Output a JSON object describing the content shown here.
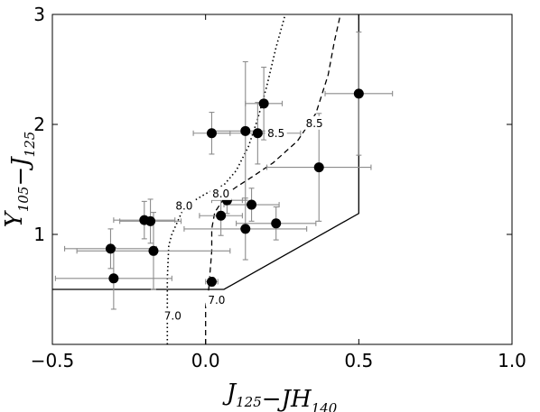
{
  "chart_data": {
    "type": "scatter",
    "xlabel": {
      "parts": [
        [
          "J",
          "125"
        ],
        [
          "−JH",
          "140"
        ]
      ]
    },
    "ylabel": {
      "parts": [
        [
          "Y",
          "105"
        ],
        [
          "−J",
          "125"
        ]
      ]
    },
    "xlim": [
      -0.5,
      1.0
    ],
    "ylim": [
      0.0,
      3.0
    ],
    "xticks": [
      -0.5,
      0.0,
      0.5,
      1.0
    ],
    "xtick_labels": [
      "−0.5",
      "0.0",
      "0.5",
      "1.0"
    ],
    "yticks": [
      1,
      2,
      3
    ],
    "ytick_labels": [
      "1",
      "2",
      "3"
    ],
    "grid": false,
    "points": [
      {
        "x": -0.31,
        "y": 0.87,
        "xerr": 0.15,
        "yerr": 0.18
      },
      {
        "x": -0.3,
        "y": 0.6,
        "xerr": 0.19,
        "yerr": 0.28
      },
      {
        "x": -0.2,
        "y": 1.13,
        "xerr": 0.1,
        "yerr": 0.17
      },
      {
        "x": -0.18,
        "y": 1.12,
        "xerr": 0.1,
        "yerr": 0.2
      },
      {
        "x": -0.17,
        "y": 0.85,
        "xerr": 0.25,
        "yerr": 0.35
      },
      {
        "x": 0.02,
        "y": 0.57,
        "xerr": 0.02,
        "yerr": 0.04
      },
      {
        "x": 0.02,
        "y": 1.92,
        "xerr": 0.06,
        "yerr": 0.19
      },
      {
        "x": 0.05,
        "y": 1.17,
        "xerr": 0.07,
        "yerr": 0.18
      },
      {
        "x": 0.07,
        "y": 1.31,
        "xerr": 0.05,
        "yerr": 0.12
      },
      {
        "x": 0.13,
        "y": 1.05,
        "xerr": 0.2,
        "yerr": 0.28
      },
      {
        "x": 0.13,
        "y": 1.94,
        "xerr": 0.11,
        "yerr": 0.63
      },
      {
        "x": 0.15,
        "y": 1.27,
        "xerr": 0.09,
        "yerr": 0.15
      },
      {
        "x": 0.17,
        "y": 1.92,
        "xerr": 0.14,
        "yerr": 0.28
      },
      {
        "x": 0.19,
        "y": 2.19,
        "xerr": 0.06,
        "yerr": 0.33
      },
      {
        "x": 0.23,
        "y": 1.1,
        "xerr": 0.13,
        "yerr": 0.15
      },
      {
        "x": 0.37,
        "y": 1.61,
        "xerr": 0.17,
        "yerr": 0.49
      },
      {
        "x": 0.5,
        "y": 2.28,
        "xerr": 0.11,
        "yerr": 0.56
      }
    ],
    "selection_region": [
      [
        -0.5,
        0.5
      ],
      [
        0.06,
        0.5
      ],
      [
        0.5,
        1.19
      ],
      [
        0.5,
        3.0
      ]
    ],
    "tracks": [
      {
        "style": "dotted",
        "points": [
          [
            -0.125,
            0.0
          ],
          [
            -0.125,
            0.3
          ],
          [
            -0.125,
            0.6
          ],
          [
            -0.12,
            0.9
          ],
          [
            -0.11,
            1.0
          ],
          [
            -0.07,
            1.25
          ],
          [
            0.0,
            1.37
          ],
          [
            0.06,
            1.45
          ],
          [
            0.1,
            1.58
          ],
          [
            0.14,
            1.8
          ],
          [
            0.17,
            2.05
          ],
          [
            0.2,
            2.35
          ],
          [
            0.23,
            2.7
          ],
          [
            0.26,
            3.0
          ]
        ],
        "labels": [
          {
            "text": "7.0",
            "x": -0.107,
            "y": 0.26
          },
          {
            "text": "8.0",
            "x": -0.07,
            "y": 1.26
          },
          {
            "text": "8.5",
            "x": 0.23,
            "y": 1.92
          }
        ]
      },
      {
        "style": "dashed",
        "points": [
          [
            0.0,
            0.0
          ],
          [
            0.0,
            0.35
          ],
          [
            0.01,
            0.5
          ],
          [
            0.02,
            0.85
          ],
          [
            0.02,
            1.05
          ],
          [
            0.03,
            1.2
          ],
          [
            0.07,
            1.37
          ],
          [
            0.1,
            1.43
          ],
          [
            0.15,
            1.52
          ],
          [
            0.22,
            1.65
          ],
          [
            0.3,
            1.85
          ],
          [
            0.36,
            2.1
          ],
          [
            0.4,
            2.45
          ],
          [
            0.42,
            2.75
          ],
          [
            0.44,
            3.0
          ]
        ],
        "labels": [
          {
            "text": "7.0",
            "x": 0.036,
            "y": 0.4
          },
          {
            "text": "8.0",
            "x": 0.05,
            "y": 1.37
          },
          {
            "text": "8.5",
            "x": 0.355,
            "y": 2.01
          }
        ]
      }
    ]
  }
}
